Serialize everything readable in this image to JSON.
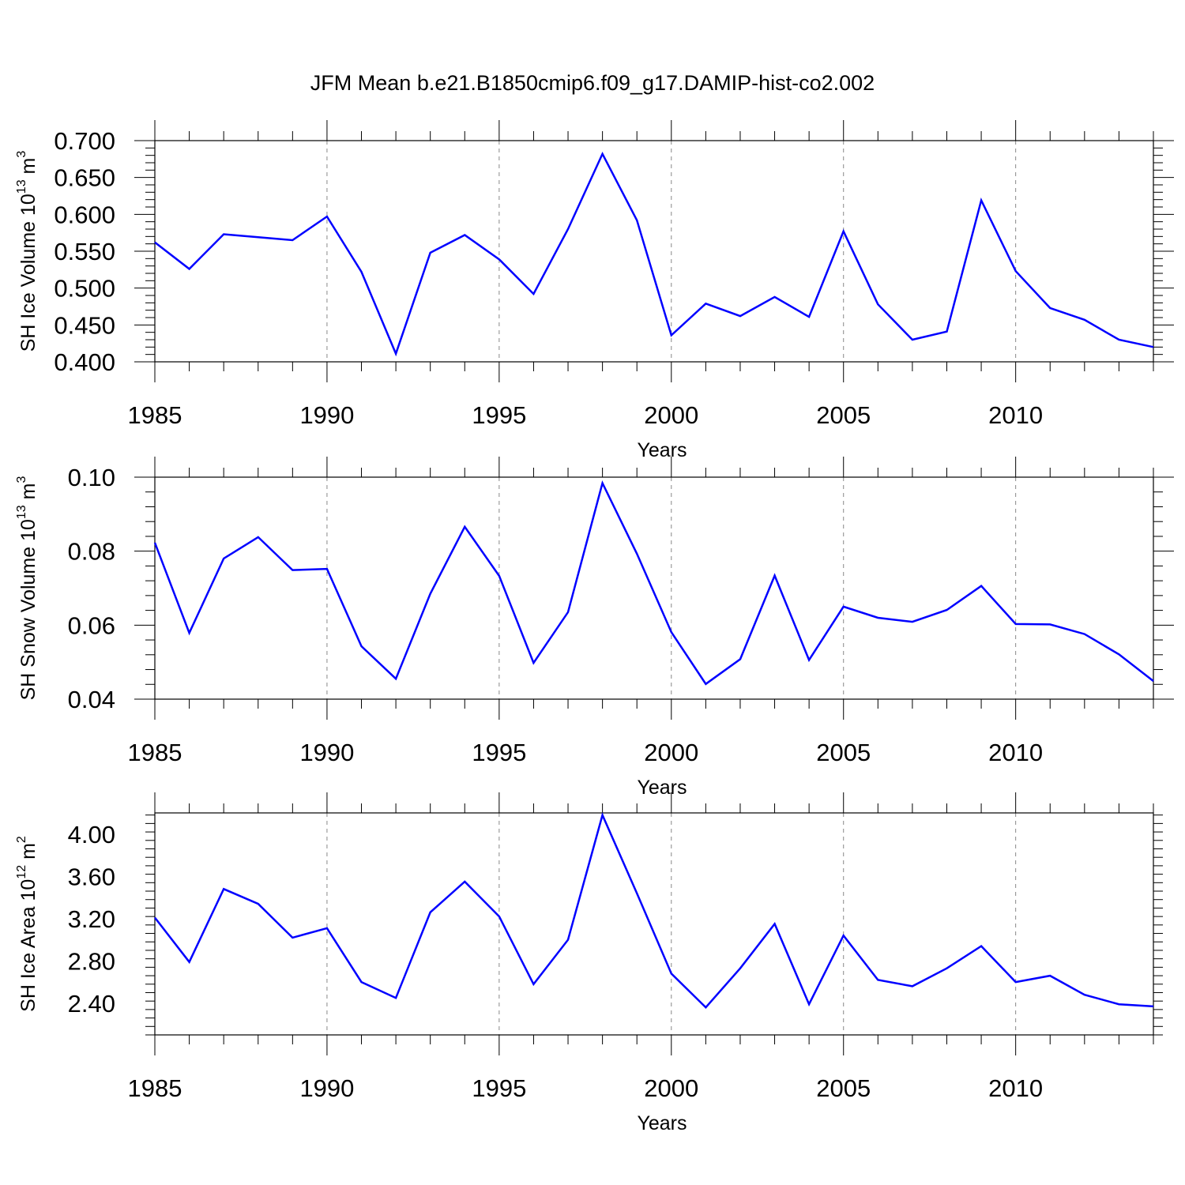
{
  "title": "JFM Mean b.e21.B1850cmip6.f09_g17.DAMIP-hist-co2.002",
  "line_color": "#0000ff",
  "chart_data": [
    {
      "type": "line",
      "ylabel": "SH Ice Volume 10",
      "ylabel_exp": "13",
      "ylabel_unit": " m",
      "ylabel_unit_exp": "3",
      "xlabel": "Years",
      "xlim": [
        1985,
        2014
      ],
      "ylim": [
        0.4,
        0.7
      ],
      "xticks": [
        1985,
        1990,
        1995,
        2000,
        2005,
        2010
      ],
      "xtick_labels": [
        "1985",
        "1990",
        "1995",
        "2000",
        "2005",
        "2010"
      ],
      "yticks": [
        0.4,
        0.45,
        0.5,
        0.55,
        0.6,
        0.65,
        0.7
      ],
      "ytick_labels": [
        "0.400",
        "0.450",
        "0.500",
        "0.550",
        "0.600",
        "0.650",
        "0.700"
      ],
      "series": [
        {
          "name": "SH Ice Volume",
          "x": [
            1985,
            1986,
            1987,
            1988,
            1989,
            1990,
            1991,
            1992,
            1993,
            1994,
            1995,
            1996,
            1997,
            1998,
            1999,
            2000,
            2001,
            2002,
            2003,
            2004,
            2005,
            2006,
            2007,
            2008,
            2009,
            2010,
            2011,
            2012,
            2013,
            2014
          ],
          "values": [
            0.562,
            0.526,
            0.573,
            0.569,
            0.565,
            0.597,
            0.522,
            0.411,
            0.548,
            0.572,
            0.539,
            0.492,
            0.58,
            0.682,
            0.592,
            0.436,
            0.479,
            0.462,
            0.488,
            0.461,
            0.577,
            0.478,
            0.43,
            0.441,
            0.619,
            0.523,
            0.473,
            0.457,
            0.43,
            0.42
          ]
        }
      ]
    },
    {
      "type": "line",
      "ylabel": "SH Snow Volume 10",
      "ylabel_exp": "13",
      "ylabel_unit": " m",
      "ylabel_unit_exp": "3",
      "xlabel": "Years",
      "xlim": [
        1985,
        2014
      ],
      "ylim": [
        0.04,
        0.1
      ],
      "xticks": [
        1985,
        1990,
        1995,
        2000,
        2005,
        2010
      ],
      "xtick_labels": [
        "1985",
        "1990",
        "1995",
        "2000",
        "2005",
        "2010"
      ],
      "yticks": [
        0.04,
        0.06,
        0.08,
        0.1
      ],
      "ytick_labels": [
        "0.04",
        "0.06",
        "0.08",
        "0.10"
      ],
      "series": [
        {
          "name": "SH Snow Volume",
          "x": [
            1985,
            1986,
            1987,
            1988,
            1989,
            1990,
            1991,
            1992,
            1993,
            1994,
            1995,
            1996,
            1997,
            1998,
            1999,
            2000,
            2001,
            2002,
            2003,
            2004,
            2005,
            2006,
            2007,
            2008,
            2009,
            2010,
            2011,
            2012,
            2013,
            2014
          ],
          "values": [
            0.0823,
            0.0579,
            0.078,
            0.0838,
            0.0749,
            0.0752,
            0.0543,
            0.0455,
            0.0685,
            0.0866,
            0.0733,
            0.0498,
            0.0635,
            0.0984,
            0.0793,
            0.0581,
            0.0441,
            0.0508,
            0.0734,
            0.0506,
            0.065,
            0.062,
            0.0609,
            0.0641,
            0.0706,
            0.0603,
            0.0602,
            0.0576,
            0.0521,
            0.0449
          ]
        }
      ]
    },
    {
      "type": "line",
      "ylabel": "SH Ice Area 10",
      "ylabel_exp": "12",
      "ylabel_unit": " m",
      "ylabel_unit_exp": "2",
      "xlabel": "Years",
      "xlim": [
        1985,
        2014
      ],
      "ylim": [
        2.1,
        4.2
      ],
      "xticks": [
        1985,
        1990,
        1995,
        2000,
        2005,
        2010
      ],
      "xtick_labels": [
        "1985",
        "1990",
        "1995",
        "2000",
        "2005",
        "2010"
      ],
      "yticks": [
        2.4,
        2.8,
        3.2,
        3.6,
        4.0
      ],
      "ytick_labels": [
        "2.40",
        "2.80",
        "3.20",
        "3.60",
        "4.00"
      ],
      "series": [
        {
          "name": "SH Ice Area",
          "x": [
            1985,
            1986,
            1987,
            1988,
            1989,
            1990,
            1991,
            1992,
            1993,
            1994,
            1995,
            1996,
            1997,
            1998,
            1999,
            2000,
            2001,
            2002,
            2003,
            2004,
            2005,
            2006,
            2007,
            2008,
            2009,
            2010,
            2011,
            2012,
            2013,
            2014
          ],
          "values": [
            3.21,
            2.79,
            3.48,
            3.34,
            3.02,
            3.11,
            2.6,
            2.45,
            3.26,
            3.55,
            3.22,
            2.58,
            3.0,
            4.18,
            3.44,
            2.68,
            2.36,
            2.73,
            3.15,
            2.39,
            3.04,
            2.62,
            2.56,
            2.73,
            2.94,
            2.6,
            2.66,
            2.48,
            2.39,
            2.37
          ]
        }
      ]
    }
  ]
}
